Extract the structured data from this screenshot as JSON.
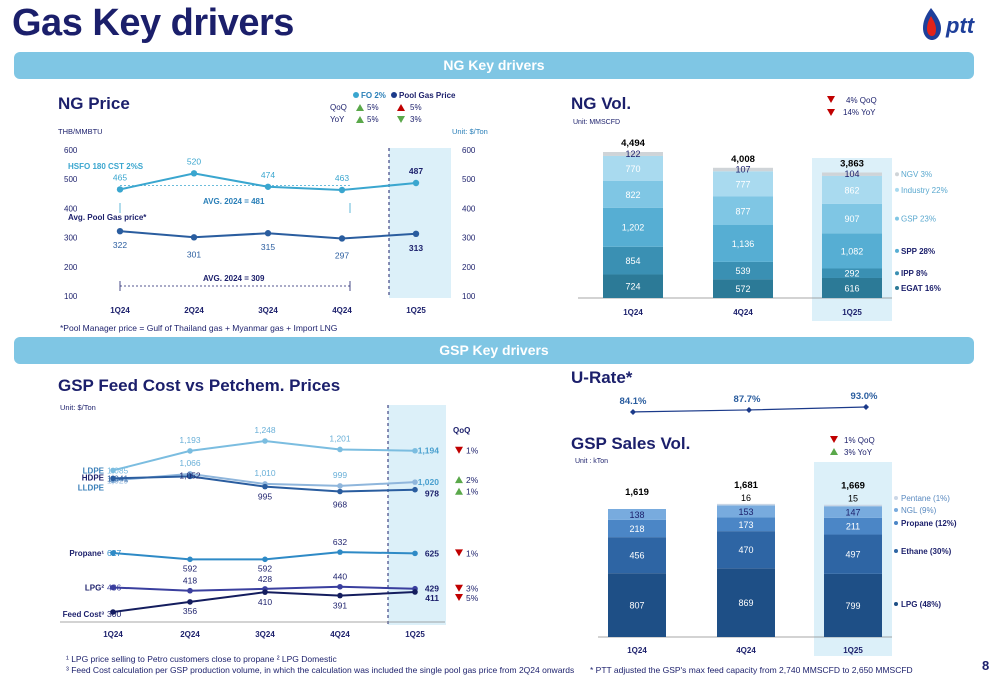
{
  "page": {
    "title": "Gas Key drivers",
    "brand": "ptt",
    "page_number": "8",
    "banner_ng": "NG Key drivers",
    "banner_gsp": "GSP Key drivers"
  },
  "ng_price": {
    "title": "NG Price",
    "unit_left": "THB/MMBTU",
    "unit_right": "Unit: $/Ton",
    "legend": {
      "fo_header": "FO 2%",
      "pool_header": "Pool Gas Price",
      "row1_label": "QoQ",
      "row2_label": "YoY",
      "fo_qoq": "5%",
      "fo_yoy": "5%",
      "pool_qoq": "5%",
      "pool_yoy": "3%"
    },
    "avg_hsfo": "AVG. 2024 = 481",
    "avg_pool": "AVG. 2024 = 309",
    "footnote": "*Pool Manager price = Gulf of Thailand gas + Myanmar gas + Import LNG"
  },
  "ng_vol": {
    "title": "NG Vol.",
    "unit": "Unit: MMSCFD",
    "legend": {
      "qoq": "4%  QoQ",
      "yoy": "14%  YoY"
    }
  },
  "gsp_feed": {
    "title": "GSP Feed Cost vs Petchem. Prices",
    "unit": "Unit: $/Ton",
    "qoq_header": "QoQ",
    "qoq_items": [
      "1%",
      "2%",
      "1%",
      "1%",
      "3%",
      "5%"
    ],
    "footnote1": "¹ LPG price selling to Petro customers close to propane  ² LPG Domestic",
    "footnote2": "³ Feed Cost calculation per GSP production volume, in which the calculation was included the single pool gas price from 2Q24 onwards"
  },
  "u_rate": {
    "title": "U-Rate*"
  },
  "gsp_sales": {
    "title": "GSP Sales Vol.",
    "unit": "Unit : kTon",
    "legend": {
      "qoq": "1% QoQ",
      "yoy": "3%  YoY"
    },
    "footnote": "* PTT adjusted the GSP's max feed capacity from 2,740 MMSCFD to 2,650 MMSCFD"
  },
  "colors": {
    "navy": "#1b1f6b",
    "banner": "#7fc6e4",
    "highlight": "#dcf0f9",
    "hsfo_line": "#3aa6cf",
    "pool_line": "#2a5d9f",
    "up": "#5aa84a",
    "down": "#c00000"
  },
  "chart_data": [
    {
      "type": "line",
      "id": "ng-price",
      "categories": [
        "1Q24",
        "2Q24",
        "3Q24",
        "4Q24",
        "1Q25"
      ],
      "series": [
        {
          "name": "HSFO 180 CST 2%S",
          "values": [
            465,
            520,
            474,
            463,
            487
          ]
        },
        {
          "name": "Avg. Pool Gas price*",
          "values": [
            322,
            301,
            315,
            297,
            313
          ]
        }
      ],
      "ylim": [
        100,
        600
      ],
      "yticks": [
        "100",
        "200",
        "300",
        "400",
        "500",
        "600"
      ]
    },
    {
      "type": "bar",
      "id": "ng-vol",
      "stacked": true,
      "categories": [
        "1Q24",
        "4Q24",
        "1Q25"
      ],
      "totals": [
        "4,494",
        "4,008",
        "3,863"
      ],
      "series": [
        {
          "name": "EGAT 16%",
          "values": [
            724,
            572,
            616
          ]
        },
        {
          "name": "IPP 8%",
          "values": [
            854,
            539,
            292
          ]
        },
        {
          "name": "SPP 28%",
          "values": [
            1202,
            1136,
            1082
          ]
        },
        {
          "name": "GSP 23%",
          "values": [
            822,
            877,
            907
          ]
        },
        {
          "name": "Industry 22%",
          "values": [
            770,
            777,
            862
          ]
        },
        {
          "name": "NGV 3%",
          "values": [
            122,
            107,
            104
          ]
        }
      ]
    },
    {
      "type": "line",
      "id": "gsp-feed",
      "categories": [
        "1Q24",
        "2Q24",
        "3Q24",
        "4Q24",
        "1Q25"
      ],
      "series": [
        {
          "name": "LDPE",
          "values": [
            1085,
            1193,
            1248,
            1201,
            1194
          ]
        },
        {
          "name": "LLDPE",
          "values": [
            1029,
            1066,
            1010,
            999,
            1020
          ]
        },
        {
          "name": "HDPE",
          "values": [
            1041,
            1052,
            995,
            968,
            978
          ]
        },
        {
          "name": "Propane¹",
          "values": [
            627,
            592,
            592,
            632,
            625
          ]
        },
        {
          "name": "LPG²",
          "values": [
            436,
            418,
            428,
            440,
            429
          ]
        },
        {
          "name": "Feed Cost³",
          "values": [
            300,
            356,
            410,
            391,
            411
          ]
        }
      ]
    },
    {
      "type": "line",
      "id": "u-rate",
      "x": [
        "1Q24",
        "4Q24",
        "1Q25"
      ],
      "values": [
        "84.1%",
        "87.7%",
        "93.0%"
      ]
    },
    {
      "type": "bar",
      "id": "gsp-sales",
      "stacked": true,
      "categories": [
        "1Q24",
        "4Q24",
        "1Q25"
      ],
      "totals": [
        "1,619",
        "1,681",
        "1,669"
      ],
      "series": [
        {
          "name": "LPG (48%)",
          "values": [
            807,
            869,
            799
          ]
        },
        {
          "name": "Ethane (30%)",
          "values": [
            456,
            470,
            497
          ]
        },
        {
          "name": "Propane (12%)",
          "values": [
            218,
            173,
            211
          ]
        },
        {
          "name": "NGL (9%)",
          "values": [
            138,
            153,
            147
          ]
        },
        {
          "name": "Pentane (1%)",
          "values": [
            0,
            16,
            15
          ]
        }
      ]
    }
  ]
}
